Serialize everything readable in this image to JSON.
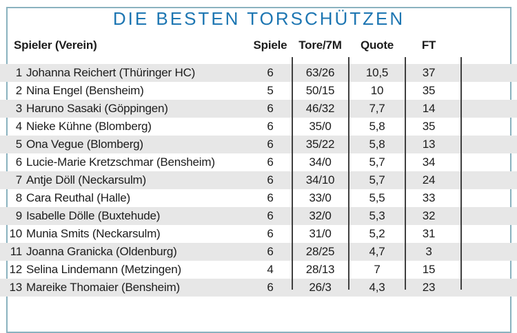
{
  "chart_data": {
    "type": "table",
    "title": "DIE BESTEN TORSCHÜTZEN",
    "columns": {
      "player": "Spieler (Verein)",
      "spiele": "Spiele",
      "tore": "Tore/7M",
      "quote": "Quote",
      "ft": "FT"
    },
    "rows": [
      {
        "rank": "1",
        "player": "Johanna Reichert (Thüringer HC)",
        "spiele": "6",
        "tore": "63/26",
        "quote": "10,5",
        "ft": "37"
      },
      {
        "rank": "2",
        "player": "Nina Engel (Bensheim)",
        "spiele": "5",
        "tore": "50/15",
        "quote": "10",
        "ft": "35"
      },
      {
        "rank": "3",
        "player": "Haruno Sasaki (Göppingen)",
        "spiele": "6",
        "tore": "46/32",
        "quote": "7,7",
        "ft": "14"
      },
      {
        "rank": "4",
        "player": "Nieke Kühne (Blomberg)",
        "spiele": "6",
        "tore": "35/0",
        "quote": "5,8",
        "ft": "35"
      },
      {
        "rank": "5",
        "player": "Ona Vegue (Blomberg)",
        "spiele": "6",
        "tore": "35/22",
        "quote": "5,8",
        "ft": "13"
      },
      {
        "rank": "6",
        "player": "Lucie-Marie Kretzschmar (Bensheim)",
        "spiele": "6",
        "tore": "34/0",
        "quote": "5,7",
        "ft": "34"
      },
      {
        "rank": "7",
        "player": "Antje Döll (Neckarsulm)",
        "spiele": "6",
        "tore": "34/10",
        "quote": "5,7",
        "ft": "24"
      },
      {
        "rank": "8",
        "player": "Cara Reuthal (Halle)",
        "spiele": "6",
        "tore": "33/0",
        "quote": "5,5",
        "ft": "33"
      },
      {
        "rank": "9",
        "player": "Isabelle Dölle (Buxtehude)",
        "spiele": "6",
        "tore": "32/0",
        "quote": "5,3",
        "ft": "32"
      },
      {
        "rank": "10",
        "player": "Munia Smits (Neckarsulm)",
        "spiele": "6",
        "tore": "31/0",
        "quote": "5,2",
        "ft": "31"
      },
      {
        "rank": "11",
        "player": "Joanna Granicka (Oldenburg)",
        "spiele": "6",
        "tore": "28/25",
        "quote": "4,7",
        "ft": "3"
      },
      {
        "rank": "12",
        "player": "Selina Lindemann (Metzingen)",
        "spiele": "4",
        "tore": "28/13",
        "quote": "7",
        "ft": "15"
      },
      {
        "rank": "13",
        "player": "Mareike Thomaier (Bensheim)",
        "spiele": "6",
        "tore": "26/3",
        "quote": "4,3",
        "ft": "23"
      }
    ]
  },
  "colors": {
    "title_blue": "#1d76b2",
    "frame_blue": "#8ab2bf",
    "stripe_gray": "#e7e7e7",
    "divider_dark": "#3f3f3f",
    "text_dark": "#1c1c1c"
  }
}
